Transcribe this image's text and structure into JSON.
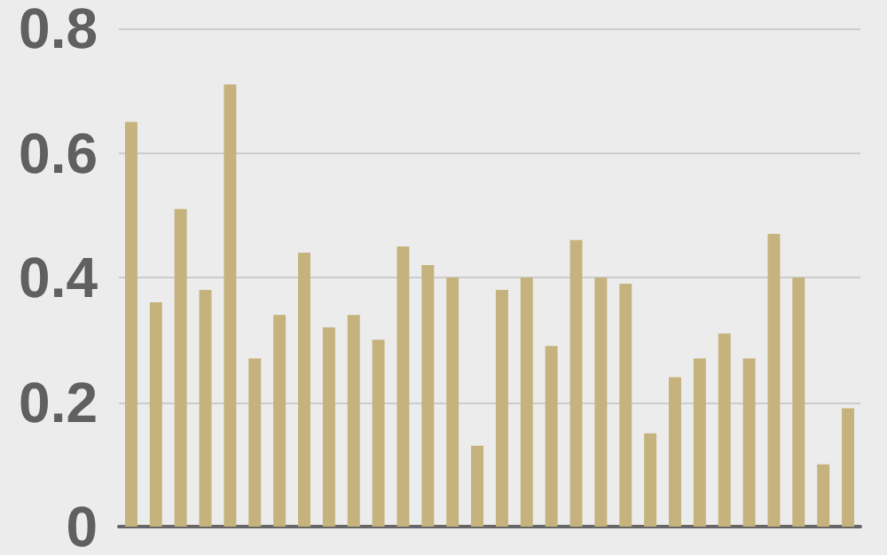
{
  "chart_data": {
    "type": "bar",
    "categories": [
      null,
      null,
      null,
      null,
      null,
      null,
      null,
      null,
      null,
      null,
      null,
      null,
      null,
      null,
      null,
      null,
      null,
      null,
      null,
      null,
      null,
      null,
      null,
      null,
      null,
      null,
      null,
      null,
      null,
      null
    ],
    "values": [
      0.65,
      0.36,
      0.51,
      0.38,
      0.71,
      0.27,
      0.34,
      0.44,
      0.32,
      0.34,
      0.3,
      0.45,
      0.42,
      0.4,
      0.13,
      0.38,
      0.4,
      0.29,
      0.46,
      0.4,
      0.39,
      0.15,
      0.24,
      0.27,
      0.31,
      0.27,
      0.47,
      0.4,
      0.1,
      0.19
    ],
    "color": "#c5b27c",
    "ylim": [
      0,
      0.8
    ],
    "yticks": [
      0,
      0.2,
      0.4,
      0.6,
      0.8
    ],
    "grid": "y",
    "tick_labels": "y"
  }
}
